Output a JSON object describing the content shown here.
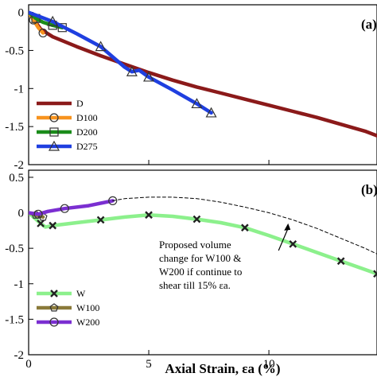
{
  "chart_data": [
    {
      "panel_label": "(a)",
      "type": "line",
      "xlim": [
        0,
        14.5
      ],
      "ylim": [
        -2,
        0.1
      ],
      "yticks": [
        0,
        -0.5,
        -1,
        -1.5,
        -2
      ],
      "ytick_labels": [
        "0",
        "-0.5",
        "-1",
        "-1.5",
        "-2"
      ],
      "legend_position": "bottom-left",
      "series": [
        {
          "name": "D",
          "color": "#8b1a1a",
          "marker": "none",
          "x": [
            0,
            0.5,
            1,
            2,
            3,
            4,
            5,
            6,
            7,
            8,
            9,
            10,
            11,
            12,
            13,
            14,
            14.5
          ],
          "y": [
            0,
            -0.22,
            -0.32,
            -0.45,
            -0.57,
            -0.68,
            -0.79,
            -0.89,
            -0.98,
            -1.06,
            -1.14,
            -1.22,
            -1.3,
            -1.38,
            -1.47,
            -1.56,
            -1.62
          ]
        },
        {
          "name": "D100",
          "color": "#f7931e",
          "marker": "circle",
          "x": [
            0,
            0.2,
            0.4,
            0.6
          ],
          "y": [
            0,
            -0.1,
            -0.2,
            -0.27
          ]
        },
        {
          "name": "D200",
          "color": "#1a8c1a",
          "marker": "square",
          "x": [
            0,
            0.3,
            0.6,
            1.0,
            1.4
          ],
          "y": [
            0,
            -0.08,
            -0.13,
            -0.17,
            -0.2
          ]
        },
        {
          "name": "D275",
          "color": "#1f3fe0",
          "marker": "triangle",
          "x": [
            0,
            1,
            2,
            3,
            4,
            4.3,
            4.6,
            5,
            6,
            7,
            7.6
          ],
          "y": [
            0,
            -0.12,
            -0.28,
            -0.45,
            -0.72,
            -0.78,
            -0.76,
            -0.85,
            -1.02,
            -1.2,
            -1.32
          ]
        }
      ]
    },
    {
      "panel_label": "(b)",
      "type": "line",
      "xlabel": "Axial Strain, εa (%)",
      "xlim": [
        0,
        14.5
      ],
      "ylim": [
        -2,
        0.6
      ],
      "xticks": [
        0,
        5,
        10
      ],
      "xtick_labels": [
        "0",
        "5",
        "10"
      ],
      "yticks": [
        0.5,
        0,
        -0.5,
        -1,
        -1.5,
        -2
      ],
      "ytick_labels": [
        "0.5",
        "0",
        "-0.5",
        "-1",
        "-1.5",
        "-2"
      ],
      "legend_position": "bottom-left",
      "series": [
        {
          "name": "W",
          "color": "#8cf08c",
          "marker": "x",
          "x": [
            0,
            0.5,
            0.7,
            1,
            2,
            3,
            4,
            5,
            6,
            7,
            8,
            9,
            10,
            11,
            12,
            13,
            14,
            14.5
          ],
          "y": [
            0,
            -0.15,
            -0.2,
            -0.18,
            -0.14,
            -0.1,
            -0.06,
            -0.03,
            -0.05,
            -0.09,
            -0.14,
            -0.21,
            -0.32,
            -0.44,
            -0.56,
            -0.68,
            -0.8,
            -0.86
          ]
        },
        {
          "name": "W100",
          "color": "#8a7a3a",
          "marker": "pentagon",
          "x": [
            0,
            0.3,
            0.6
          ],
          "y": [
            0,
            -0.03,
            -0.06
          ]
        },
        {
          "name": "W200",
          "color": "#7b2fd1",
          "marker": "circle",
          "x": [
            0,
            0.4,
            0.8,
            1.5,
            2.5,
            3.5
          ],
          "y": [
            0,
            -0.02,
            0.02,
            0.06,
            0.1,
            0.17
          ]
        },
        {
          "name": "",
          "color": "#000000",
          "marker": "none",
          "style": "dashed",
          "x": [
            3.5,
            4,
            5,
            6,
            7,
            8,
            9,
            10,
            11,
            12,
            13,
            14,
            14.5
          ],
          "y": [
            0.17,
            0.2,
            0.22,
            0.22,
            0.2,
            0.15,
            0.08,
            0,
            -0.1,
            -0.22,
            -0.36,
            -0.5,
            -0.58
          ]
        }
      ],
      "annotation": {
        "lines": [
          "Proposed volume",
          "change for W100 &",
          "W200 if continue to",
          "shear till 15% εa."
        ],
        "arrow_to": [
          10.8,
          -0.15
        ]
      }
    }
  ]
}
